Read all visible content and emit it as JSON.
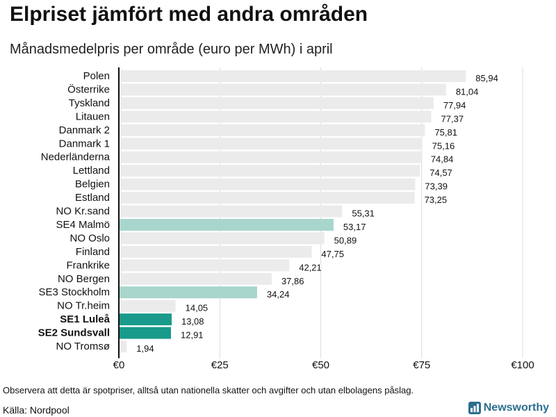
{
  "chart_data": {
    "type": "bar",
    "orientation": "horizontal",
    "title": "Elpriset jämfört med andra områden",
    "subtitle": "Månadsmedelpris per område (euro per MWh) i april",
    "categories": [
      "Polen",
      "Österrike",
      "Tyskland",
      "Litauen",
      "Danmark 2",
      "Danmark 1",
      "Nederländerna",
      "Lettland",
      "Belgien",
      "Estland",
      "NO Kr.sand",
      "SE4 Malmö",
      "NO Oslo",
      "Finland",
      "Frankrike",
      "NO Bergen",
      "SE3 Stockholm",
      "NO Tr.heim",
      "SE1 Luleå",
      "SE2 Sundsvall",
      "NO Tromsø"
    ],
    "values": [
      85.94,
      81.04,
      77.94,
      77.37,
      75.81,
      75.16,
      74.84,
      74.57,
      73.39,
      73.25,
      55.31,
      53.17,
      50.89,
      47.75,
      42.21,
      37.86,
      34.24,
      14.05,
      13.08,
      12.91,
      1.94
    ],
    "value_labels": [
      "85,94",
      "81,04",
      "77,94",
      "77,37",
      "75,81",
      "75,16",
      "74,84",
      "74,57",
      "73,39",
      "73,25",
      "55,31",
      "53,17",
      "50,89",
      "47,75",
      "42,21",
      "37,86",
      "34,24",
      "14,05",
      "13,08",
      "12,91",
      "1,94"
    ],
    "highlight": [
      "none",
      "none",
      "none",
      "none",
      "none",
      "none",
      "none",
      "none",
      "none",
      "none",
      "none",
      "light",
      "none",
      "none",
      "none",
      "none",
      "light",
      "none",
      "strong",
      "strong",
      "none"
    ],
    "xlim": [
      0,
      100
    ],
    "xticks": [
      0,
      25,
      50,
      75,
      100
    ],
    "xtick_labels": [
      "€0",
      "€25",
      "€50",
      "€75",
      "€100"
    ],
    "grid": true,
    "colors": {
      "default": "#ebebeb",
      "light": "#a8d5cc",
      "strong": "#1a9a8a",
      "grid": "#dcdcdc",
      "axis": "#111111"
    }
  },
  "footer": {
    "note": "Observera att detta är spotpriser, alltså utan nationella skatter och avgifter och utan elbolagens påslag.",
    "source": "Källa: Nordpool",
    "brand": "Newsworthy"
  }
}
